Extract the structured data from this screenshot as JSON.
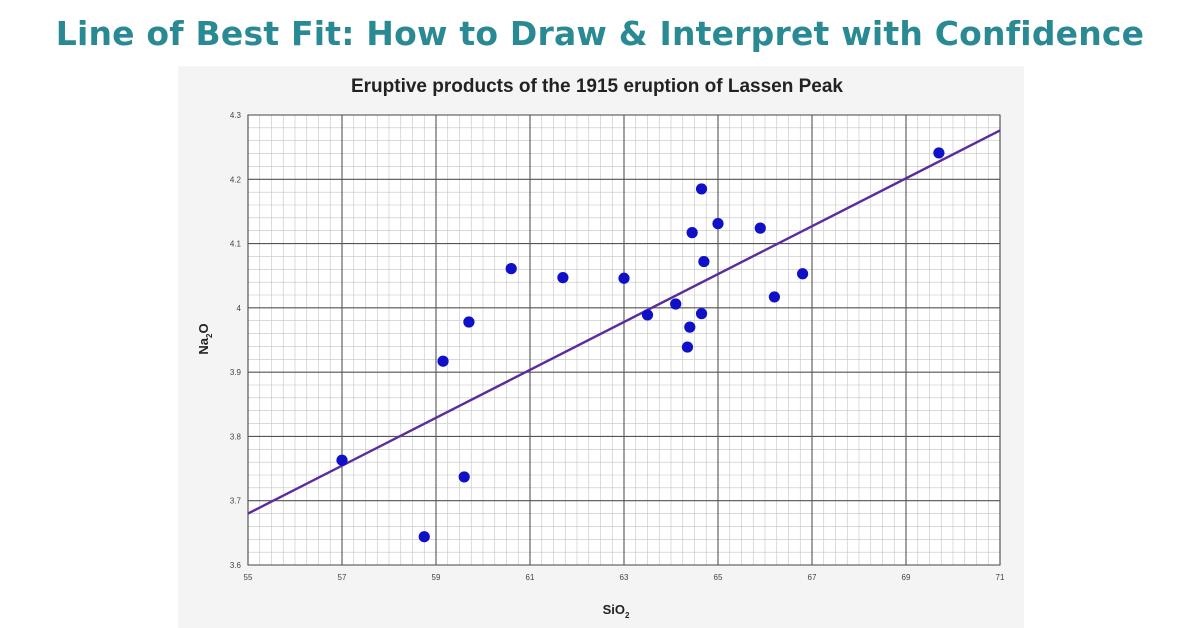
{
  "banner": {
    "title": "Line of Best Fit: How to Draw & Interpret with Confidence",
    "color": "#2a8a93"
  },
  "chart_data": {
    "type": "scatter",
    "title": "Eruptive products of the 1915 eruption of Lassen Peak",
    "xlabel": {
      "main": "SiO",
      "sub": "2"
    },
    "ylabel": {
      "main": "Na",
      "sub": "2",
      "tail": "O"
    },
    "xlim": [
      55,
      71
    ],
    "ylim": [
      3.6,
      4.3
    ],
    "xticks": [
      {
        "value": 55,
        "label": "55"
      },
      {
        "value": 57,
        "label": "57"
      },
      {
        "value": 59,
        "label": "59"
      },
      {
        "value": 61,
        "label": "61"
      },
      {
        "value": 63,
        "label": "63"
      },
      {
        "value": 65,
        "label": "65"
      },
      {
        "value": 67,
        "label": "67"
      },
      {
        "value": 69,
        "label": "69"
      },
      {
        "value": 71,
        "label": "71"
      }
    ],
    "yticks": [
      {
        "value": 3.6,
        "label": "3.6"
      },
      {
        "value": 3.7,
        "label": "3.7"
      },
      {
        "value": 3.8,
        "label": "3.8"
      },
      {
        "value": 3.9,
        "label": "3.9"
      },
      {
        "value": 4.0,
        "label": "4"
      },
      {
        "value": 4.1,
        "label": "4.1"
      },
      {
        "value": 4.2,
        "label": "4.2"
      },
      {
        "value": 4.3,
        "label": "4.3"
      }
    ],
    "minor_grid": {
      "x_step": 0.25,
      "y_step": 0.02
    },
    "grid": true,
    "point_color": "#1010c8",
    "line_color": "#5a2c9c",
    "points": [
      {
        "x": 57.0,
        "y": 3.763
      },
      {
        "x": 58.75,
        "y": 3.644
      },
      {
        "x": 59.15,
        "y": 3.917
      },
      {
        "x": 59.6,
        "y": 3.737
      },
      {
        "x": 59.7,
        "y": 3.978
      },
      {
        "x": 60.6,
        "y": 4.061
      },
      {
        "x": 61.7,
        "y": 4.047
      },
      {
        "x": 63.0,
        "y": 4.046
      },
      {
        "x": 63.5,
        "y": 3.989
      },
      {
        "x": 64.1,
        "y": 4.006
      },
      {
        "x": 64.35,
        "y": 3.939
      },
      {
        "x": 64.4,
        "y": 3.97
      },
      {
        "x": 64.45,
        "y": 4.117
      },
      {
        "x": 64.65,
        "y": 4.185
      },
      {
        "x": 64.65,
        "y": 3.991
      },
      {
        "x": 64.7,
        "y": 4.072
      },
      {
        "x": 65.0,
        "y": 4.131
      },
      {
        "x": 65.9,
        "y": 4.124
      },
      {
        "x": 66.2,
        "y": 4.017
      },
      {
        "x": 66.8,
        "y": 4.053
      },
      {
        "x": 69.7,
        "y": 4.241
      }
    ],
    "trendline": {
      "start": {
        "x": 55.0,
        "y": 3.68
      },
      "end": {
        "x": 71.0,
        "y": 4.276
      }
    }
  }
}
